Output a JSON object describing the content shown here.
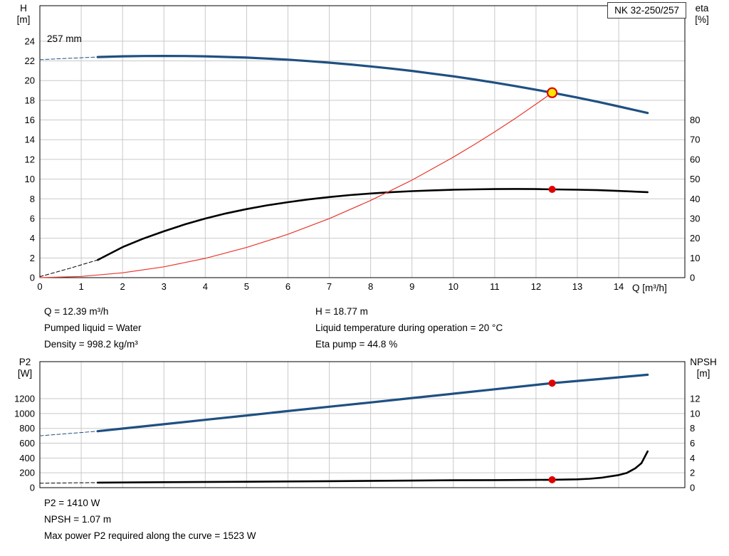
{
  "title_box": {
    "pump_name": "NK 32-250/257"
  },
  "labels": {
    "h": "H",
    "h_unit": "[m]",
    "eta": "eta",
    "eta_unit": "[%]",
    "q": "Q [m³/h]",
    "p2": "P2",
    "p2_unit": "[W]",
    "npsh": "NPSH",
    "npsh_unit": "[m]",
    "impeller": "257 mm"
  },
  "info_top_left": [
    "Q = 12.39 m³/h",
    "Pumped liquid = Water",
    "Density = 998.2 kg/m³"
  ],
  "info_top_right": [
    "H = 18.77 m",
    "Liquid temperature during operation = 20 °C",
    "Eta pump = 44.8 %"
  ],
  "info_bottom": [
    "P2 = 1410 W",
    "NPSH = 1.07 m",
    "Max power P2 required along the curve = 1523 W"
  ],
  "colors": {
    "curve_blue": "#1f5081",
    "curve_black": "#000000",
    "system_red": "#e8372c",
    "marker_red": "#e00000",
    "marker_yellow": "#ffe800",
    "grid": "#c9c9c9",
    "border": "#000000"
  },
  "chart_data": [
    {
      "type": "line",
      "title": "NK 32-250/257 head and efficiency vs flow",
      "x_axis": {
        "label": "Q [m³/h]",
        "min": 0,
        "max": 15.6,
        "ticks": [
          0,
          1,
          2,
          3,
          4,
          5,
          6,
          7,
          8,
          9,
          10,
          11,
          12,
          13,
          14
        ],
        "show_tick_labels": true
      },
      "left_axis": {
        "label": "H [m]",
        "min": 0,
        "max": 27.6,
        "ticks": [
          0,
          2,
          4,
          6,
          8,
          10,
          12,
          14,
          16,
          18,
          20,
          22,
          24
        ]
      },
      "right_axis": {
        "label": "eta [%]",
        "min": 0,
        "max": 138,
        "ticks": [
          0,
          10,
          20,
          30,
          40,
          50,
          60,
          70,
          80
        ]
      },
      "grid": true,
      "series": [
        {
          "name": "head-curve-dashed",
          "axis": "left",
          "color": "#1f5081",
          "width": 1,
          "dash": "5 3",
          "points": [
            [
              0,
              22.12
            ],
            [
              0.7,
              22.26
            ],
            [
              1.4,
              22.39
            ]
          ]
        },
        {
          "name": "head-curve",
          "axis": "left",
          "color": "#1f5081",
          "width": 3.2,
          "points": [
            [
              1.4,
              22.39
            ],
            [
              2,
              22.46
            ],
            [
              2.5,
              22.49
            ],
            [
              3,
              22.5
            ],
            [
              3.5,
              22.49
            ],
            [
              4,
              22.46
            ],
            [
              4.5,
              22.4
            ],
            [
              5,
              22.33
            ],
            [
              5.5,
              22.23
            ],
            [
              6,
              22.12
            ],
            [
              6.5,
              21.98
            ],
            [
              7,
              21.82
            ],
            [
              7.5,
              21.64
            ],
            [
              8,
              21.44
            ],
            [
              8.5,
              21.22
            ],
            [
              9,
              20.98
            ],
            [
              9.5,
              20.71
            ],
            [
              10,
              20.43
            ],
            [
              10.5,
              20.12
            ],
            [
              11,
              19.79
            ],
            [
              11.5,
              19.44
            ],
            [
              12,
              19.07
            ],
            [
              12.39,
              18.77
            ],
            [
              13,
              18.27
            ],
            [
              13.5,
              17.84
            ],
            [
              14,
              17.38
            ],
            [
              14.7,
              16.71
            ]
          ]
        },
        {
          "name": "eta-curve-dashed",
          "axis": "right",
          "color": "#000000",
          "width": 1,
          "dash": "5 3",
          "points": [
            [
              0,
              0.5
            ],
            [
              0.7,
              4.6
            ],
            [
              1.4,
              9
            ]
          ]
        },
        {
          "name": "eta-curve",
          "axis": "right",
          "color": "#000000",
          "width": 2.6,
          "points": [
            [
              1.4,
              9
            ],
            [
              2,
              15.5
            ],
            [
              2.5,
              19.8
            ],
            [
              3,
              23.5
            ],
            [
              3.5,
              27
            ],
            [
              4,
              30
            ],
            [
              4.5,
              32.6
            ],
            [
              5,
              34.8
            ],
            [
              5.5,
              36.7
            ],
            [
              6,
              38.3
            ],
            [
              6.5,
              39.7
            ],
            [
              7,
              40.9
            ],
            [
              7.5,
              41.9
            ],
            [
              8,
              42.7
            ],
            [
              8.5,
              43.4
            ],
            [
              9,
              43.9
            ],
            [
              9.5,
              44.3
            ],
            [
              10,
              44.6
            ],
            [
              10.5,
              44.8
            ],
            [
              11,
              44.95
            ],
            [
              11.5,
              45.0
            ],
            [
              12,
              44.95
            ],
            [
              12.39,
              44.8
            ],
            [
              13,
              44.6
            ],
            [
              13.5,
              44.4
            ],
            [
              14,
              44.0
            ],
            [
              14.7,
              43.4
            ]
          ]
        },
        {
          "name": "system-curve",
          "axis": "left",
          "color": "#e8372c",
          "width": 1.2,
          "points": [
            [
              0,
              0
            ],
            [
              1,
              0.12
            ],
            [
              2,
              0.49
            ],
            [
              3,
              1.1
            ],
            [
              4,
              1.96
            ],
            [
              5,
              3.06
            ],
            [
              6,
              4.4
            ],
            [
              7,
              5.99
            ],
            [
              8,
              7.83
            ],
            [
              9,
              9.9
            ],
            [
              10,
              12.23
            ],
            [
              10.5,
              13.48
            ],
            [
              11,
              14.79
            ],
            [
              11.5,
              16.17
            ],
            [
              12,
              17.61
            ],
            [
              12.39,
              18.77
            ]
          ]
        }
      ],
      "markers": [
        {
          "name": "duty-point-head",
          "axis": "left",
          "x": 12.39,
          "y": 18.77,
          "style": "target"
        },
        {
          "name": "duty-point-eta",
          "axis": "right",
          "x": 12.39,
          "y": 44.8,
          "style": "dot"
        }
      ]
    },
    {
      "type": "line",
      "title": "Power P2 and NPSH vs flow",
      "x_axis": {
        "label": "",
        "min": 0,
        "max": 15.6,
        "ticks": [
          0,
          1,
          2,
          3,
          4,
          5,
          6,
          7,
          8,
          9,
          10,
          11,
          12,
          13,
          14
        ],
        "show_tick_labels": false
      },
      "left_axis": {
        "label": "P2 [W]",
        "min": 0,
        "max": 1700,
        "ticks": [
          0,
          200,
          400,
          600,
          800,
          1000,
          1200
        ]
      },
      "right_axis": {
        "label": "NPSH [m]",
        "min": 0,
        "max": 17,
        "ticks": [
          0,
          2,
          4,
          6,
          8,
          10,
          12
        ]
      },
      "grid": true,
      "series": [
        {
          "name": "p2-curve-dashed",
          "axis": "left",
          "color": "#1f5081",
          "width": 1,
          "dash": "5 3",
          "points": [
            [
              0,
              700
            ],
            [
              0.7,
              731
            ],
            [
              1.4,
              762
            ]
          ]
        },
        {
          "name": "p2-curve",
          "axis": "left",
          "color": "#1f5081",
          "width": 3.2,
          "points": [
            [
              1.4,
              762
            ],
            [
              2,
              797
            ],
            [
              3,
              856
            ],
            [
              4,
              915
            ],
            [
              5,
              974
            ],
            [
              6,
              1033
            ],
            [
              7,
              1092
            ],
            [
              8,
              1150
            ],
            [
              9,
              1209
            ],
            [
              10,
              1268
            ],
            [
              11,
              1327
            ],
            [
              12,
              1387
            ],
            [
              12.39,
              1410
            ],
            [
              13,
              1440
            ],
            [
              13.5,
              1464
            ],
            [
              14,
              1489
            ],
            [
              14.7,
              1523
            ]
          ]
        },
        {
          "name": "npsh-curve-dashed",
          "axis": "right",
          "color": "#000000",
          "width": 1,
          "dash": "5 3",
          "points": [
            [
              0,
              0.6
            ],
            [
              0.7,
              0.64
            ],
            [
              1.4,
              0.68
            ]
          ]
        },
        {
          "name": "npsh-curve",
          "axis": "right",
          "color": "#000000",
          "width": 2.6,
          "points": [
            [
              1.4,
              0.68
            ],
            [
              3,
              0.74
            ],
            [
              5,
              0.8
            ],
            [
              7,
              0.87
            ],
            [
              9,
              0.95
            ],
            [
              10,
              1.0
            ],
            [
              11,
              1.02
            ],
            [
              12,
              1.05
            ],
            [
              12.39,
              1.07
            ],
            [
              13,
              1.12
            ],
            [
              13.3,
              1.2
            ],
            [
              13.6,
              1.35
            ],
            [
              14,
              1.7
            ],
            [
              14.2,
              2.0
            ],
            [
              14.4,
              2.6
            ],
            [
              14.55,
              3.3
            ],
            [
              14.7,
              4.9
            ]
          ]
        }
      ],
      "markers": [
        {
          "name": "duty-point-p2",
          "axis": "left",
          "x": 12.39,
          "y": 1410,
          "style": "dot"
        },
        {
          "name": "duty-point-npsh",
          "axis": "right",
          "x": 12.39,
          "y": 1.07,
          "style": "dot"
        }
      ]
    }
  ]
}
